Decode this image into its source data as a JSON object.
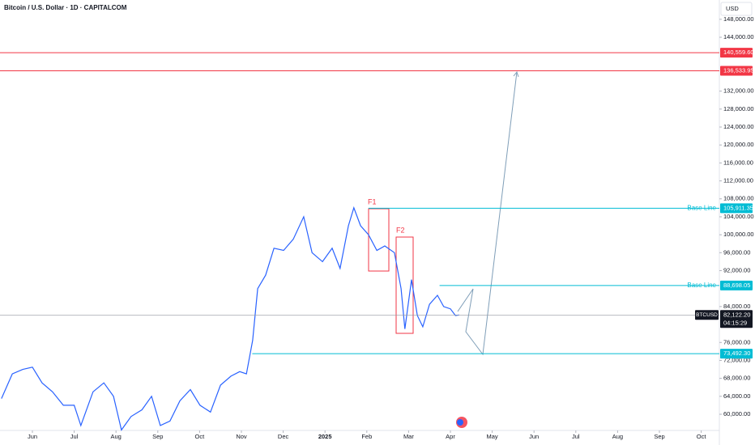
{
  "chart_data": {
    "type": "line",
    "title": "Bitcoin / U.S. Dollar · 1D · CAPITALCOM",
    "currency": "USD",
    "countdown": "04:15:29",
    "annotations": [
      "F1",
      "F2"
    ],
    "x": [
      -0.74,
      -0.48,
      -0.23,
      0,
      0.23,
      0.48,
      0.74,
      1.0,
      1.16,
      1.45,
      1.71,
      1.94,
      2.13,
      2.36,
      2.62,
      2.85,
      3.06,
      3.29,
      3.53,
      3.78,
      4.01,
      4.26,
      4.5,
      4.75,
      4.96,
      5.12,
      5.27,
      5.39,
      5.58,
      5.78,
      6.01,
      6.24,
      6.49,
      6.69,
      6.94,
      7.17,
      7.36,
      7.56,
      7.69,
      7.85,
      8.04,
      8.24,
      8.43,
      8.66,
      8.82,
      8.91,
      9.07,
      9.21,
      9.34,
      9.5,
      9.69,
      9.84,
      10.0,
      10.12,
      10.21
    ],
    "series": [
      {
        "name": "BTCUSD",
        "color": "#2962ff",
        "values": [
          63500,
          69000,
          70000,
          70500,
          67000,
          65000,
          62000,
          62000,
          57500,
          65000,
          67000,
          64000,
          56500,
          59500,
          61000,
          64000,
          57500,
          58500,
          63000,
          65500,
          62000,
          60500,
          66500,
          68500,
          69500,
          69000,
          76500,
          88000,
          91000,
          97000,
          96500,
          99000,
          104000,
          96000,
          94000,
          97000,
          92500,
          102000,
          106000,
          102000,
          100000,
          96500,
          97500,
          96000,
          88000,
          79000,
          90000,
          82000,
          79500,
          84500,
          86500,
          84000,
          83500,
          82000,
          82122.2
        ],
        "value_labels": [
          null,
          null,
          null,
          null,
          null,
          null,
          null,
          null,
          null,
          null,
          null,
          null,
          null,
          null,
          null,
          null,
          null,
          null,
          null,
          null,
          null,
          null,
          null,
          null,
          null,
          null,
          null,
          null,
          null,
          null,
          null,
          null,
          null,
          null,
          null,
          null,
          null,
          null,
          null,
          null,
          null,
          null,
          null,
          null,
          null,
          null,
          null,
          null,
          null,
          null,
          null,
          null,
          null,
          null,
          "82,122.20"
        ]
      }
    ],
    "xlim": [
      -0.775,
      16.434
    ],
    "xticks": [
      {
        "value": 0,
        "label": "Jun"
      },
      {
        "value": 1,
        "label": "Jul"
      },
      {
        "value": 2,
        "label": "Aug"
      },
      {
        "value": 3,
        "label": "Sep"
      },
      {
        "value": 4,
        "label": "Oct"
      },
      {
        "value": 5,
        "label": "Nov"
      },
      {
        "value": 6,
        "label": "Dec"
      },
      {
        "value": 7,
        "label": "2025"
      },
      {
        "value": 8,
        "label": "Feb"
      },
      {
        "value": 9,
        "label": "Mar"
      },
      {
        "value": 10,
        "label": "Apr"
      },
      {
        "value": 11,
        "label": "May"
      },
      {
        "value": 12,
        "label": "Jun"
      },
      {
        "value": 13,
        "label": "Jul"
      },
      {
        "value": 14,
        "label": "Aug"
      },
      {
        "value": 15,
        "label": "Sep"
      },
      {
        "value": 16,
        "label": "Oct"
      }
    ],
    "ylim": [
      56400,
      152300
    ],
    "yticks": [
      {
        "value": 60000,
        "label": "60,000.00"
      },
      {
        "value": 64000,
        "label": "64,000.00"
      },
      {
        "value": 68000,
        "label": "68,000.00"
      },
      {
        "value": 72000,
        "label": "72,000.00"
      },
      {
        "value": 76000,
        "label": "76,000.00"
      },
      {
        "value": 84000,
        "label": "84,000.00"
      },
      {
        "value": 92000,
        "label": "92,000.00"
      },
      {
        "value": 96000,
        "label": "96,000.00"
      },
      {
        "value": 100000,
        "label": "100,000.00"
      },
      {
        "value": 104000,
        "label": "104,000.00"
      },
      {
        "value": 108000,
        "label": "108,000.00"
      },
      {
        "value": 112000,
        "label": "112,000.00"
      },
      {
        "value": 116000,
        "label": "116,000.00"
      },
      {
        "value": 120000,
        "label": "120,000.00"
      },
      {
        "value": 124000,
        "label": "124,000.00"
      },
      {
        "value": 128000,
        "label": "128,000.00"
      },
      {
        "value": 132000,
        "label": "132,000.00"
      },
      {
        "value": 144000,
        "label": "144,000.00"
      },
      {
        "value": 148000,
        "label": "148,000.00"
      }
    ],
    "grid": false,
    "price_lines": [
      {
        "value": 140559.6,
        "label": "140,559.60",
        "color": "#f23645"
      },
      {
        "value": 136533.95,
        "label": "136,533.95",
        "color": "#f23645"
      },
      {
        "value": 105911.35,
        "label": "105,911.35",
        "color": "#00bcd4",
        "text": "Base Line",
        "x_start": 8.04
      },
      {
        "value": 88698.05,
        "label": "88,698.05",
        "color": "#00bcd4",
        "text": "Base Line",
        "x_start": 9.74
      },
      {
        "value": 73492.3,
        "label": "73,492.30",
        "color": "#00bcd4",
        "x_start": 5.26
      }
    ],
    "last_price_color": "#131722"
  }
}
